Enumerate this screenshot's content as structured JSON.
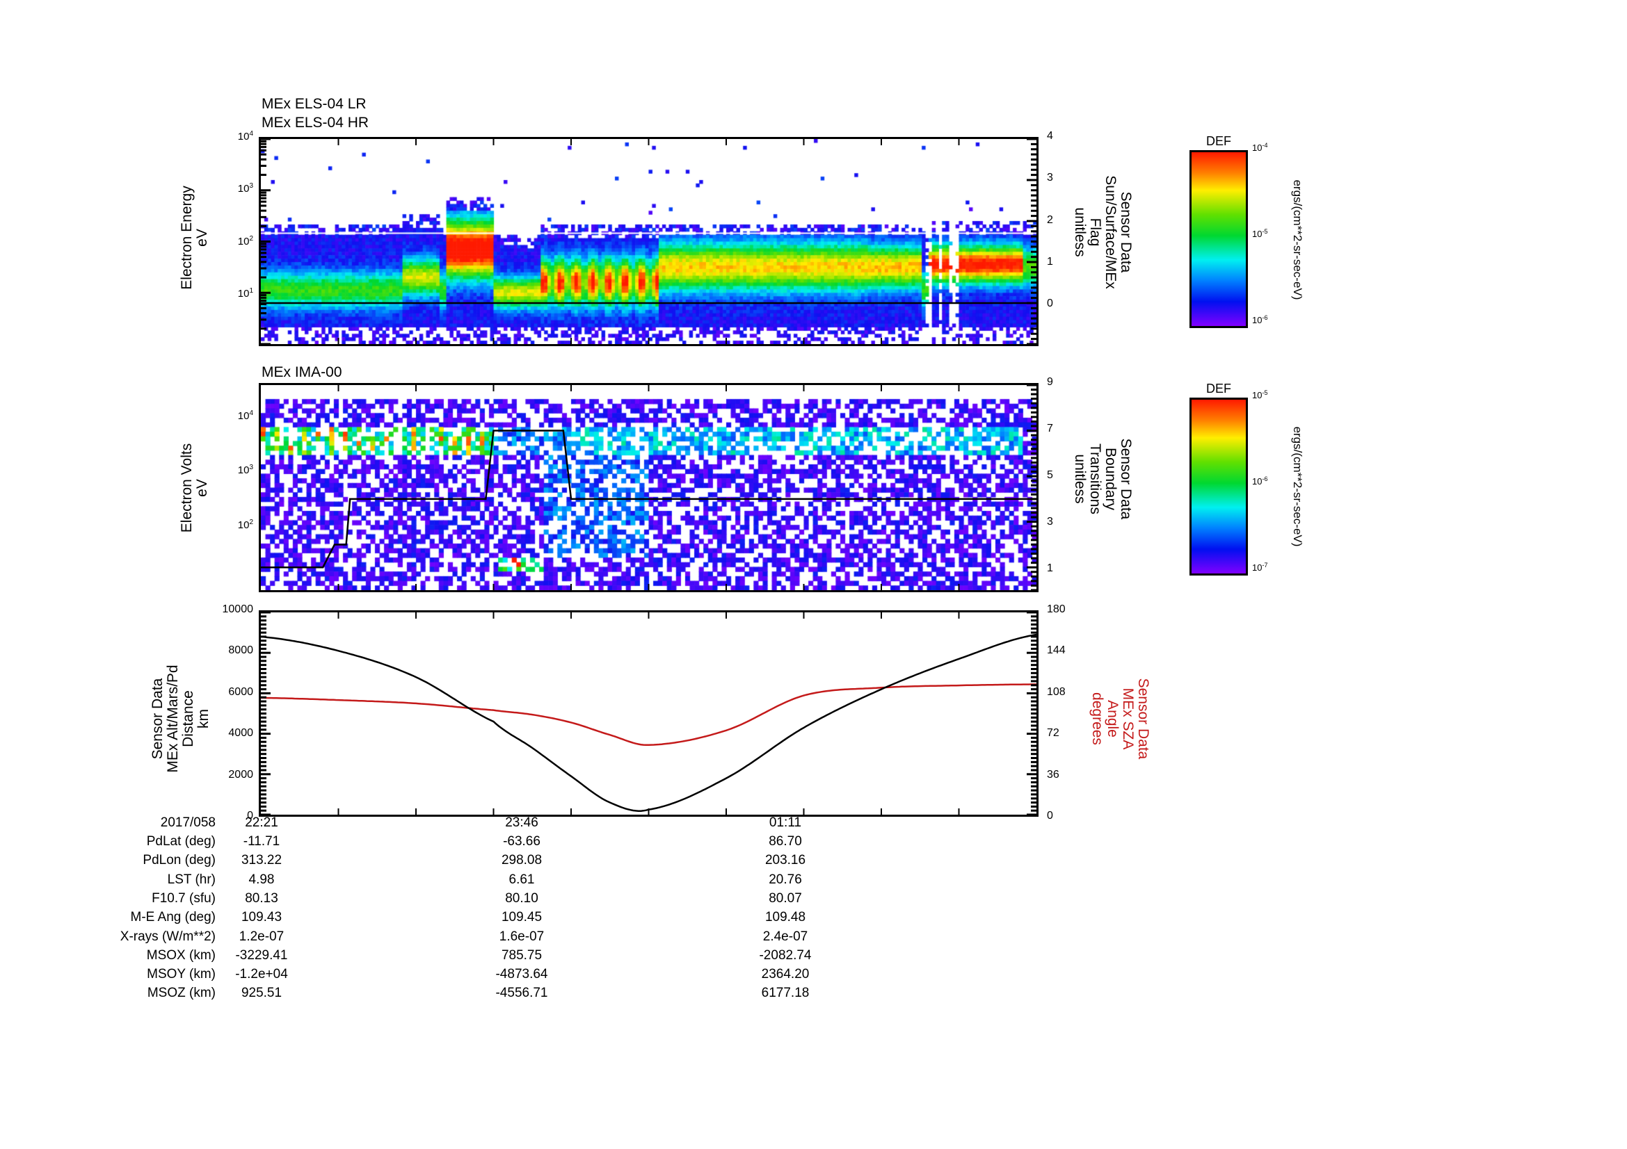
{
  "panels": {
    "els": {
      "titles": [
        "MEx ELS-04 LR",
        "MEx ELS-04 HR"
      ],
      "ylabel": [
        "Electron Energy",
        "eV"
      ],
      "y2label": [
        "Sensor Data",
        "Sun/Surface/MEx",
        "Flag",
        "unitless"
      ],
      "yticks": [
        {
          "base": "10",
          "exp": "4",
          "frac": 0.0
        },
        {
          "base": "10",
          "exp": "3",
          "frac": 0.25
        },
        {
          "base": "10",
          "exp": "2",
          "frac": 0.5
        },
        {
          "base": "10",
          "exp": "1",
          "frac": 0.75
        }
      ],
      "y2ticks": [
        "4",
        "3",
        "2",
        "1",
        "0"
      ],
      "colorbar": {
        "title": "DEF",
        "ticks": [
          {
            "base": "10",
            "exp": "-4"
          },
          {
            "base": "10",
            "exp": "-5"
          },
          {
            "base": "10",
            "exp": "-6"
          }
        ],
        "units": "ergs/(cm**2-sr-sec-eV)"
      }
    },
    "ima": {
      "title": "MEx IMA-00",
      "ylabel": [
        "Electron Volts",
        "eV"
      ],
      "y2label": [
        "Sensor Data",
        "Boundary",
        "Transitions",
        "unitless"
      ],
      "yticks": [
        {
          "base": "10",
          "exp": "4",
          "frac": 0.16
        },
        {
          "base": "10",
          "exp": "3",
          "frac": 0.42
        },
        {
          "base": "10",
          "exp": "2",
          "frac": 0.68
        }
      ],
      "y2ticks": [
        "9",
        "7",
        "5",
        "3",
        "1"
      ],
      "colorbar": {
        "title": "DEF",
        "ticks": [
          {
            "base": "10",
            "exp": "-5"
          },
          {
            "base": "10",
            "exp": "-6"
          },
          {
            "base": "10",
            "exp": "-7"
          }
        ],
        "units": "ergs/(cm**2-sr-sec-eV)"
      }
    },
    "orbit": {
      "ylabel": [
        "Sensor Data",
        "MEx Alt/Mars/Pd",
        "Distance",
        "km"
      ],
      "y2label": [
        "Sensor Data",
        "MEx SZA",
        "Angle",
        "degrees"
      ],
      "yticks": [
        "10000",
        "8000",
        "6000",
        "4000",
        "2000",
        "0"
      ],
      "y2ticks": [
        "180",
        "144",
        "108",
        "72",
        "36",
        "0"
      ],
      "colors": {
        "altitude": "#000000",
        "sza": "#c41a1a"
      }
    }
  },
  "ephemeris": {
    "date_label": "2017/058",
    "times": [
      "22:21",
      "23:46",
      "01:11"
    ],
    "rows": [
      {
        "label": "PdLat (deg)",
        "values": [
          "-11.71",
          "-63.66",
          "86.70"
        ]
      },
      {
        "label": "PdLon (deg)",
        "values": [
          "313.22",
          "298.08",
          "203.16"
        ]
      },
      {
        "label": "LST (hr)",
        "values": [
          "4.98",
          "6.61",
          "20.76"
        ]
      },
      {
        "label": "F10.7 (sfu)",
        "values": [
          "80.13",
          "80.10",
          "80.07"
        ]
      },
      {
        "label": "M-E Ang (deg)",
        "values": [
          "109.43",
          "109.45",
          "109.48"
        ]
      },
      {
        "label": "X-rays (W/m**2)",
        "values": [
          "1.2e-07",
          "1.6e-07",
          "2.4e-07"
        ]
      },
      {
        "label": "MSOX (km)",
        "values": [
          "-3229.41",
          "785.75",
          "-2082.74"
        ]
      },
      {
        "label": "MSOY (km)",
        "values": [
          "-1.2e+04",
          "-4873.64",
          "2364.20"
        ]
      },
      {
        "label": "MSOZ (km)",
        "values": [
          "925.51",
          "-4556.71",
          "6177.18"
        ]
      }
    ]
  },
  "chart_data": [
    {
      "type": "heatmap",
      "title": "MEx ELS-04 LR / MEx ELS-04 HR",
      "xlabel": "Time (2017/058)",
      "ylabel": "Electron Energy (eV)",
      "yscale": "log",
      "ylim": [
        1,
        10000
      ],
      "xticks": [
        "22:21",
        "23:46",
        "01:11"
      ],
      "colorbar": {
        "label": "DEF ergs/(cm**2-sr-sec-eV)",
        "range": [
          1e-06,
          0.0001
        ],
        "scale": "log"
      },
      "features": [
        {
          "x_range": [
            0.0,
            0.2
          ],
          "peak_energy_eV": 10,
          "level": "low (blue-green)"
        },
        {
          "x_range": [
            0.24,
            0.3
          ],
          "peak_energy_eV": 100,
          "level": "high (red, up to ~1e-4)"
        },
        {
          "x_range": [
            0.36,
            0.5
          ],
          "peak_energy_eV": 15,
          "level": "high (yellow-red bursts)"
        },
        {
          "x_range": [
            0.5,
            0.77
          ],
          "peak_energy_eV": 30,
          "level": "medium (green-yellow)"
        },
        {
          "x_range": [
            0.86,
            0.98
          ],
          "peak_energy_eV": 30,
          "level": "high (red)"
        }
      ],
      "overlay": {
        "name": "Sun/Surface/MEx Flag",
        "axis": "right",
        "ylim": [
          -1,
          4
        ],
        "x": [
          0.0,
          1.0
        ],
        "y": [
          0,
          0
        ]
      }
    },
    {
      "type": "heatmap",
      "title": "MEx IMA-00",
      "xlabel": "Time (2017/058)",
      "ylabel": "Electron Volts (eV)",
      "yscale": "log",
      "ylim": [
        10,
        30000
      ],
      "xticks": [
        "22:21",
        "23:46",
        "01:11"
      ],
      "colorbar": {
        "label": "DEF ergs/(cm**2-sr-sec-eV)",
        "range": [
          1e-07,
          1e-05
        ],
        "scale": "log"
      },
      "features": [
        {
          "x_range": [
            0.0,
            0.3
          ],
          "energy_eV": [
            1000,
            3000
          ],
          "level": "high (solar wind, red-yellow)"
        },
        {
          "x_range": [
            0.3,
            1.0
          ],
          "energy_eV": [
            1000,
            3000
          ],
          "level": "medium (cyan-blue)"
        },
        {
          "x_range": [
            0.3,
            0.36
          ],
          "energy_eV": [
            10,
            30
          ],
          "level": "high (planetary ions, red)"
        }
      ],
      "overlay": {
        "name": "Boundary Transitions",
        "axis": "right",
        "ylim": [
          0,
          9
        ],
        "x": [
          0.0,
          0.08,
          0.095,
          0.11,
          0.115,
          0.29,
          0.3,
          0.39,
          0.4,
          1.0
        ],
        "y": [
          1,
          1,
          2,
          2,
          4,
          4,
          7,
          7,
          4,
          4
        ]
      }
    },
    {
      "type": "line",
      "title": "",
      "xlabel": "Time (2017/058)",
      "ylabel": "MEx Alt/Mars/Pd Distance (km)",
      "y2label": "MEx SZA Angle (degrees)",
      "ylim": [
        0,
        10000
      ],
      "y2lim": [
        0,
        180
      ],
      "xticks": [
        "22:21",
        "23:46",
        "01:11"
      ],
      "x": [
        0.0,
        0.1,
        0.2,
        0.3,
        0.35,
        0.4,
        0.45,
        0.5,
        0.6,
        0.7,
        0.8,
        0.9,
        1.0
      ],
      "series": [
        {
          "name": "MEx Alt (km)",
          "axis": "left",
          "color": "#000000",
          "values": [
            8800,
            8100,
            6800,
            4600,
            3300,
            1900,
            600,
            250,
            1800,
            4300,
            6200,
            7700,
            8900
          ]
        },
        {
          "name": "MEx SZA (deg)",
          "axis": "right",
          "color": "#c41a1a",
          "values": [
            104,
            102,
            99,
            93,
            89,
            82,
            71,
            62,
            75,
            106,
            113,
            115,
            116
          ]
        }
      ]
    }
  ]
}
